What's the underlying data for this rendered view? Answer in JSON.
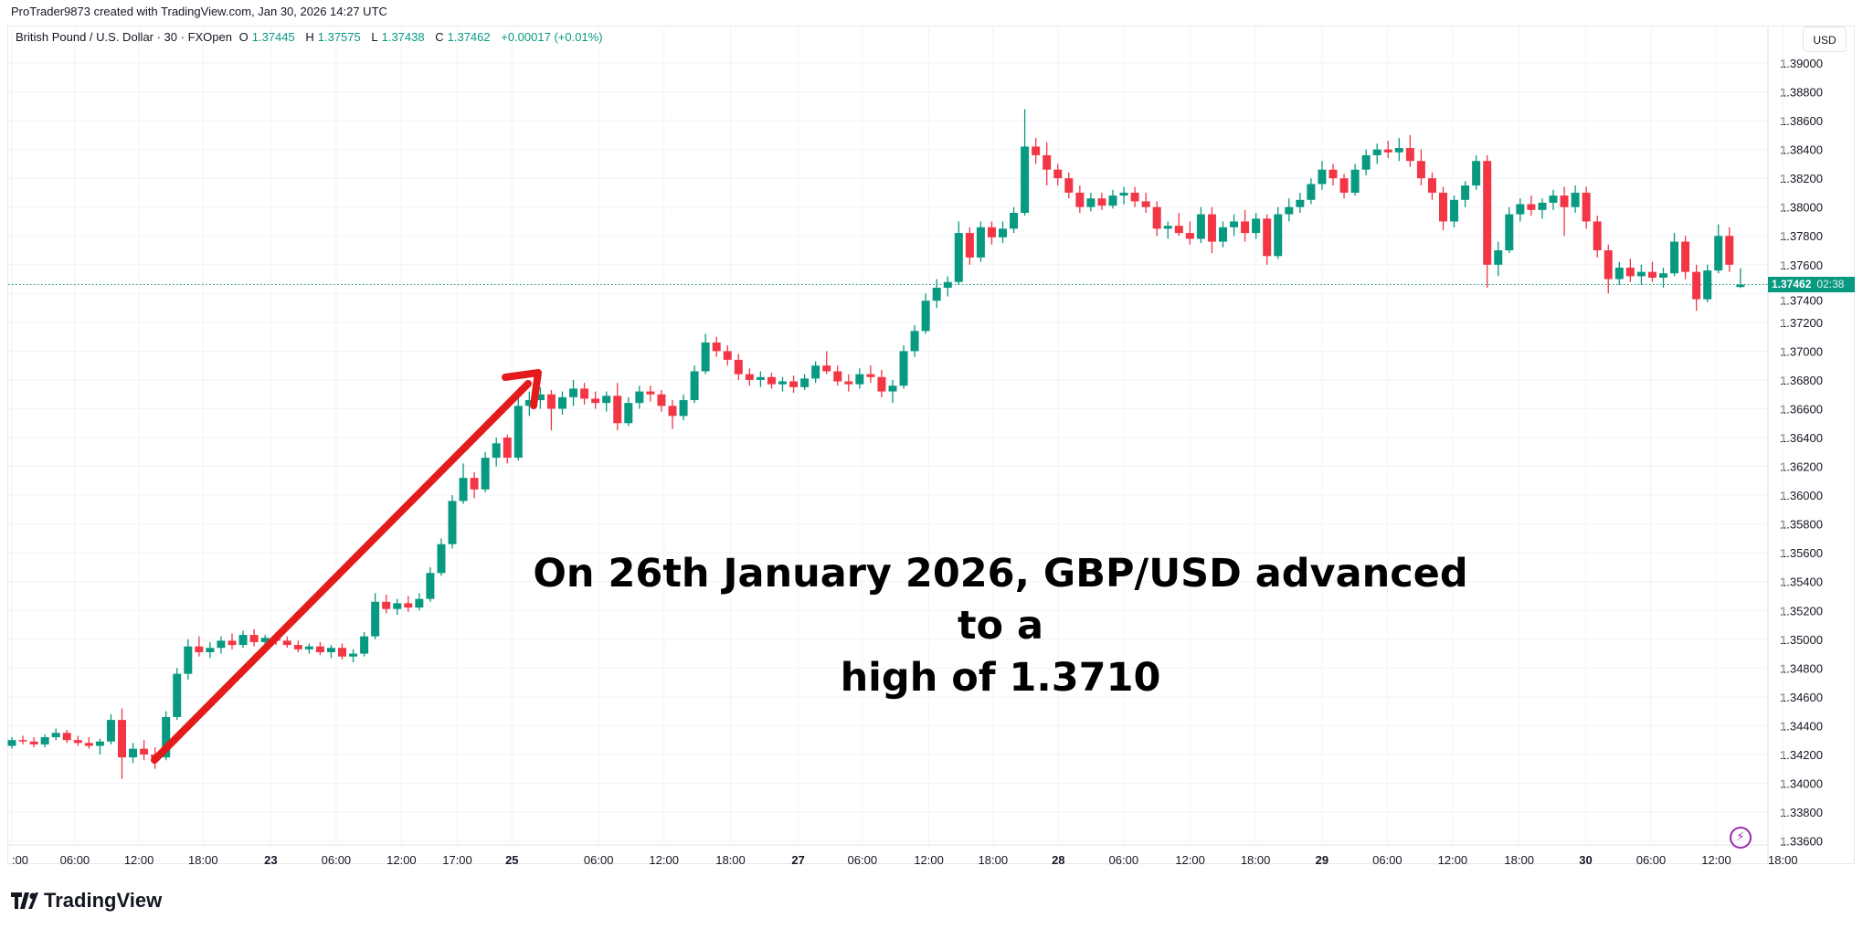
{
  "credit": "ProTrader9873 created with TradingView.com, Jan 30, 2026 14:27 UTC",
  "legend": {
    "symbol": "British Pound / U.S. Dollar · 30 · FXOpen",
    "o_label": "O",
    "o": "1.37445",
    "h_label": "H",
    "h": "1.37575",
    "l_label": "L",
    "l": "1.37438",
    "c_label": "C",
    "c": "1.37462",
    "change": "+0.00017 (+0.01%)"
  },
  "currency": "USD",
  "last_price": {
    "value": "1.37462",
    "countdown": "02:38"
  },
  "annotation": {
    "line1": "On 26th January 2026, GBP/USD advanced to a",
    "line2": "high of 1.3710"
  },
  "brand": "TradingView",
  "colors": {
    "up": "#089981",
    "down": "#f23645",
    "arrow": "#e31b1b",
    "grid": "#f0f3fa"
  },
  "chart_data": {
    "type": "candlestick",
    "ylim": [
      1.336,
      1.39
    ],
    "yticks": [
      "1.39000",
      "1.38800",
      "1.38600",
      "1.38400",
      "1.38200",
      "1.38000",
      "1.37800",
      "1.37600",
      "1.37400",
      "1.37200",
      "1.37000",
      "1.36800",
      "1.36600",
      "1.36400",
      "1.36200",
      "1.36000",
      "1.35800",
      "1.35600",
      "1.35400",
      "1.35200",
      "1.35000",
      "1.34800",
      "1.34600",
      "1.34400",
      "1.34200",
      "1.34000",
      "1.33800",
      "1.33600"
    ],
    "xticks": [
      ":00",
      "06:00",
      "12:00",
      "18:00",
      "23",
      "06:00",
      "12:00",
      "17:00",
      "25",
      "06:00",
      "12:00",
      "18:00",
      "27",
      "06:00",
      "12:00",
      "18:00",
      "28",
      "06:00",
      "12:00",
      "18:00",
      "29",
      "06:00",
      "12:00",
      "18:00",
      "30",
      "06:00",
      "12:00",
      "18:00"
    ],
    "grid": true,
    "candles_ohlc": [
      [
        1.3426,
        1.3432,
        1.3424,
        1.343
      ],
      [
        1.343,
        1.3433,
        1.3427,
        1.3429
      ],
      [
        1.3429,
        1.3432,
        1.3425,
        1.3427
      ],
      [
        1.3427,
        1.3434,
        1.3425,
        1.3432
      ],
      [
        1.3432,
        1.3438,
        1.343,
        1.3435
      ],
      [
        1.3435,
        1.3437,
        1.3428,
        1.343
      ],
      [
        1.343,
        1.3433,
        1.3426,
        1.3428
      ],
      [
        1.3428,
        1.3432,
        1.3424,
        1.3426
      ],
      [
        1.3426,
        1.3431,
        1.342,
        1.3429
      ],
      [
        1.3429,
        1.3448,
        1.3427,
        1.3444
      ],
      [
        1.3444,
        1.3452,
        1.3403,
        1.3418
      ],
      [
        1.3418,
        1.3428,
        1.3414,
        1.3424
      ],
      [
        1.3424,
        1.343,
        1.3416,
        1.342
      ],
      [
        1.342,
        1.3425,
        1.341,
        1.3418
      ],
      [
        1.3418,
        1.345,
        1.3416,
        1.3446
      ],
      [
        1.3446,
        1.348,
        1.3444,
        1.3476
      ],
      [
        1.3476,
        1.35,
        1.3472,
        1.3495
      ],
      [
        1.3495,
        1.3502,
        1.3488,
        1.3491
      ],
      [
        1.3491,
        1.3498,
        1.3487,
        1.3494
      ],
      [
        1.3494,
        1.3502,
        1.349,
        1.3499
      ],
      [
        1.3499,
        1.3504,
        1.3493,
        1.3496
      ],
      [
        1.3496,
        1.3506,
        1.3494,
        1.3503
      ],
      [
        1.3503,
        1.3507,
        1.3495,
        1.3498
      ],
      [
        1.3498,
        1.3503,
        1.3492,
        1.3501
      ],
      [
        1.3501,
        1.3505,
        1.3496,
        1.3499
      ],
      [
        1.3499,
        1.3502,
        1.3494,
        1.3496
      ],
      [
        1.3496,
        1.3499,
        1.3491,
        1.3493
      ],
      [
        1.3493,
        1.3497,
        1.349,
        1.3495
      ],
      [
        1.3495,
        1.3498,
        1.3489,
        1.3491
      ],
      [
        1.3491,
        1.3496,
        1.3487,
        1.3494
      ],
      [
        1.3494,
        1.3497,
        1.3486,
        1.3488
      ],
      [
        1.3488,
        1.3493,
        1.3484,
        1.349
      ],
      [
        1.349,
        1.3505,
        1.3488,
        1.3502
      ],
      [
        1.3502,
        1.3532,
        1.35,
        1.3526
      ],
      [
        1.3526,
        1.3531,
        1.3518,
        1.3521
      ],
      [
        1.3521,
        1.3528,
        1.3517,
        1.3525
      ],
      [
        1.3525,
        1.353,
        1.3519,
        1.3522
      ],
      [
        1.3522,
        1.3532,
        1.352,
        1.3528
      ],
      [
        1.3528,
        1.355,
        1.3526,
        1.3546
      ],
      [
        1.3546,
        1.357,
        1.3544,
        1.3566
      ],
      [
        1.3566,
        1.36,
        1.3563,
        1.3596
      ],
      [
        1.3596,
        1.3622,
        1.3594,
        1.3612
      ],
      [
        1.3612,
        1.3616,
        1.3598,
        1.3604
      ],
      [
        1.3604,
        1.363,
        1.3602,
        1.3626
      ],
      [
        1.3626,
        1.364,
        1.362,
        1.3636
      ],
      [
        1.364,
        1.3642,
        1.3622,
        1.3626
      ],
      [
        1.3626,
        1.3668,
        1.3624,
        1.3662
      ],
      [
        1.3662,
        1.3672,
        1.3655,
        1.3666
      ],
      [
        1.3666,
        1.3675,
        1.366,
        1.367
      ],
      [
        1.367,
        1.3673,
        1.3645,
        1.366
      ],
      [
        1.366,
        1.3672,
        1.3656,
        1.3668
      ],
      [
        1.3668,
        1.368,
        1.3662,
        1.3674
      ],
      [
        1.3674,
        1.3678,
        1.3663,
        1.3667
      ],
      [
        1.3667,
        1.3672,
        1.366,
        1.3664
      ],
      [
        1.3664,
        1.3672,
        1.3658,
        1.3669
      ],
      [
        1.3669,
        1.3678,
        1.3645,
        1.365
      ],
      [
        1.365,
        1.3668,
        1.3648,
        1.3664
      ],
      [
        1.3664,
        1.3676,
        1.366,
        1.3672
      ],
      [
        1.3672,
        1.3676,
        1.3665,
        1.367
      ],
      [
        1.367,
        1.3673,
        1.3658,
        1.3662
      ],
      [
        1.3662,
        1.3666,
        1.3646,
        1.3655
      ],
      [
        1.3655,
        1.367,
        1.3652,
        1.3666
      ],
      [
        1.3666,
        1.369,
        1.3664,
        1.3686
      ],
      [
        1.3686,
        1.3712,
        1.3684,
        1.3706
      ],
      [
        1.3706,
        1.371,
        1.3696,
        1.37
      ],
      [
        1.37,
        1.3704,
        1.369,
        1.3694
      ],
      [
        1.3694,
        1.3698,
        1.368,
        1.3684
      ],
      [
        1.3684,
        1.3688,
        1.3676,
        1.368
      ],
      [
        1.368,
        1.3686,
        1.3675,
        1.3682
      ],
      [
        1.3682,
        1.3685,
        1.3674,
        1.3677
      ],
      [
        1.3677,
        1.3682,
        1.3672,
        1.3679
      ],
      [
        1.3679,
        1.3683,
        1.3671,
        1.3675
      ],
      [
        1.3675,
        1.3684,
        1.3673,
        1.3681
      ],
      [
        1.3681,
        1.3693,
        1.3678,
        1.369
      ],
      [
        1.369,
        1.37,
        1.3684,
        1.3686
      ],
      [
        1.3686,
        1.369,
        1.3676,
        1.3679
      ],
      [
        1.3679,
        1.3684,
        1.3672,
        1.3677
      ],
      [
        1.3677,
        1.3688,
        1.3674,
        1.3684
      ],
      [
        1.3684,
        1.369,
        1.3678,
        1.3682
      ],
      [
        1.3682,
        1.3687,
        1.3668,
        1.3672
      ],
      [
        1.3672,
        1.368,
        1.3664,
        1.3676
      ],
      [
        1.3676,
        1.3704,
        1.3674,
        1.37
      ],
      [
        1.37,
        1.3718,
        1.3696,
        1.3714
      ],
      [
        1.3714,
        1.374,
        1.3712,
        1.3735
      ],
      [
        1.3735,
        1.375,
        1.373,
        1.3744
      ],
      [
        1.3744,
        1.3752,
        1.3738,
        1.3748
      ],
      [
        1.3748,
        1.379,
        1.3746,
        1.3782
      ],
      [
        1.3782,
        1.3786,
        1.376,
        1.3765
      ],
      [
        1.3765,
        1.379,
        1.3762,
        1.3786
      ],
      [
        1.3786,
        1.379,
        1.3774,
        1.3779
      ],
      [
        1.3779,
        1.379,
        1.3775,
        1.3785
      ],
      [
        1.3785,
        1.38,
        1.3782,
        1.3796
      ],
      [
        1.3796,
        1.3868,
        1.3794,
        1.3842
      ],
      [
        1.3842,
        1.3848,
        1.383,
        1.3836
      ],
      [
        1.3836,
        1.3845,
        1.3815,
        1.3826
      ],
      [
        1.3826,
        1.383,
        1.3815,
        1.382
      ],
      [
        1.382,
        1.3824,
        1.3806,
        1.381
      ],
      [
        1.381,
        1.3815,
        1.3796,
        1.38
      ],
      [
        1.38,
        1.381,
        1.3797,
        1.3806
      ],
      [
        1.3806,
        1.381,
        1.3798,
        1.3801
      ],
      [
        1.3801,
        1.3812,
        1.3799,
        1.3808
      ],
      [
        1.3808,
        1.3814,
        1.3802,
        1.381
      ],
      [
        1.381,
        1.3814,
        1.38,
        1.3804
      ],
      [
        1.3804,
        1.381,
        1.3796,
        1.38
      ],
      [
        1.38,
        1.3804,
        1.378,
        1.3785
      ],
      [
        1.3785,
        1.379,
        1.3778,
        1.3787
      ],
      [
        1.3787,
        1.3796,
        1.378,
        1.3782
      ],
      [
        1.3782,
        1.379,
        1.3774,
        1.3778
      ],
      [
        1.3778,
        1.38,
        1.3775,
        1.3795
      ],
      [
        1.3795,
        1.38,
        1.3768,
        1.3776
      ],
      [
        1.3776,
        1.379,
        1.3772,
        1.3786
      ],
      [
        1.3786,
        1.3795,
        1.378,
        1.379
      ],
      [
        1.379,
        1.3798,
        1.3776,
        1.3782
      ],
      [
        1.3782,
        1.3796,
        1.3778,
        1.3792
      ],
      [
        1.3792,
        1.3795,
        1.376,
        1.3766
      ],
      [
        1.3766,
        1.38,
        1.3764,
        1.3795
      ],
      [
        1.3795,
        1.3806,
        1.379,
        1.38
      ],
      [
        1.38,
        1.381,
        1.3796,
        1.3805
      ],
      [
        1.3805,
        1.382,
        1.3802,
        1.3816
      ],
      [
        1.3816,
        1.3832,
        1.3812,
        1.3826
      ],
      [
        1.3826,
        1.383,
        1.3815,
        1.382
      ],
      [
        1.382,
        1.3823,
        1.3806,
        1.381
      ],
      [
        1.381,
        1.383,
        1.3808,
        1.3826
      ],
      [
        1.3826,
        1.384,
        1.3822,
        1.3836
      ],
      [
        1.3836,
        1.3844,
        1.383,
        1.384
      ],
      [
        1.384,
        1.3846,
        1.3834,
        1.3838
      ],
      [
        1.3838,
        1.3848,
        1.3832,
        1.3841
      ],
      [
        1.3841,
        1.385,
        1.3828,
        1.3832
      ],
      [
        1.3832,
        1.384,
        1.3815,
        1.382
      ],
      [
        1.382,
        1.3824,
        1.3805,
        1.381
      ],
      [
        1.381,
        1.3814,
        1.3784,
        1.379
      ],
      [
        1.379,
        1.3808,
        1.3786,
        1.3805
      ],
      [
        1.3805,
        1.3818,
        1.38,
        1.3815
      ],
      [
        1.3815,
        1.3836,
        1.3812,
        1.3832
      ],
      [
        1.3832,
        1.3836,
        1.3744,
        1.376
      ],
      [
        1.376,
        1.3776,
        1.3752,
        1.377
      ],
      [
        1.377,
        1.38,
        1.3768,
        1.3795
      ],
      [
        1.3795,
        1.3806,
        1.379,
        1.3802
      ],
      [
        1.3802,
        1.3808,
        1.3794,
        1.3798
      ],
      [
        1.3798,
        1.3806,
        1.3792,
        1.3803
      ],
      [
        1.3803,
        1.3812,
        1.3798,
        1.3808
      ],
      [
        1.3808,
        1.3814,
        1.378,
        1.38
      ],
      [
        1.38,
        1.3815,
        1.3796,
        1.381
      ],
      [
        1.381,
        1.3814,
        1.3785,
        1.379
      ],
      [
        1.379,
        1.3794,
        1.3765,
        1.377
      ],
      [
        1.377,
        1.3774,
        1.374,
        1.375
      ],
      [
        1.375,
        1.3762,
        1.3746,
        1.3758
      ],
      [
        1.3758,
        1.3764,
        1.3748,
        1.3752
      ],
      [
        1.3752,
        1.376,
        1.3746,
        1.3755
      ],
      [
        1.3755,
        1.3762,
        1.3748,
        1.3751
      ],
      [
        1.3751,
        1.3758,
        1.3744,
        1.3754
      ],
      [
        1.3754,
        1.3782,
        1.3752,
        1.3776
      ],
      [
        1.3776,
        1.378,
        1.375,
        1.3755
      ],
      [
        1.3755,
        1.376,
        1.3728,
        1.3736
      ],
      [
        1.3736,
        1.376,
        1.3734,
        1.3756
      ],
      [
        1.3756,
        1.3788,
        1.3754,
        1.378
      ],
      [
        1.378,
        1.3786,
        1.3755,
        1.376
      ],
      [
        1.37445,
        1.37575,
        1.37438,
        1.37462
      ]
    ]
  }
}
